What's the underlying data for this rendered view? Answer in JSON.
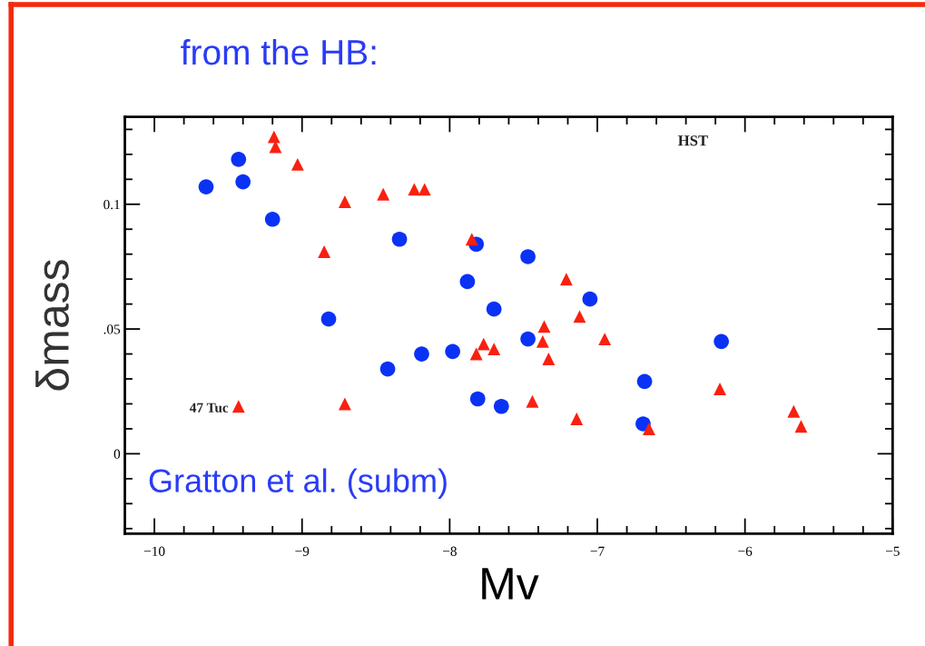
{
  "chart_data": {
    "type": "scatter",
    "title": "from the HB:",
    "xlabel": "Mv",
    "ylabel": "δmass",
    "xlim": [
      -10.2,
      -5
    ],
    "xticks": [
      -10,
      -9,
      -8,
      -7,
      -6,
      -5
    ],
    "ylim": [
      -0.032,
      0.135
    ],
    "yticks": [
      {
        "value": 0,
        "label": "0"
      },
      {
        "value": 0.05,
        "label": ".05"
      },
      {
        "value": 0.1,
        "label": "0.1"
      }
    ],
    "grid": false,
    "legend": false,
    "annotations": [
      "HST",
      "Gratton et al. (subm)",
      {
        "text": "47 Tuc",
        "x": -9.43,
        "y": 0.019
      }
    ],
    "series": [
      {
        "color": "#0a32f5",
        "marker": "circle",
        "x": [
          -9.65,
          -9.43,
          -9.4,
          -9.2,
          -8.34,
          -7.82,
          -7.47,
          -7.88,
          -7.05,
          -7.7,
          -8.82,
          -7.47,
          -6.16,
          -7.98,
          -8.19,
          -8.42,
          -6.68,
          -7.81,
          -7.65,
          -6.69
        ],
        "values": [
          0.107,
          0.118,
          0.109,
          0.094,
          0.086,
          0.084,
          0.079,
          0.069,
          0.062,
          0.058,
          0.054,
          0.046,
          0.045,
          0.041,
          0.04,
          0.034,
          0.029,
          0.022,
          0.019,
          0.012
        ]
      },
      {
        "color": "#fa2010",
        "marker": "triangle",
        "x": [
          -9.19,
          -9.18,
          -9.03,
          -8.45,
          -8.71,
          -8.24,
          -8.17,
          -8.85,
          -7.85,
          -7.21,
          -7.12,
          -7.36,
          -6.95,
          -7.77,
          -7.37,
          -7.7,
          -7.82,
          -7.33,
          -7.44,
          -7.14,
          -6.65,
          -6.17,
          -5.67,
          -5.62,
          -9.43,
          -8.71
        ],
        "values": [
          0.127,
          0.123,
          0.116,
          0.104,
          0.101,
          0.106,
          0.106,
          0.081,
          0.086,
          0.07,
          0.055,
          0.051,
          0.046,
          0.044,
          0.045,
          0.042,
          0.04,
          0.038,
          0.021,
          0.014,
          0.01,
          0.026,
          0.017,
          0.011,
          0.019,
          0.02
        ]
      }
    ]
  }
}
